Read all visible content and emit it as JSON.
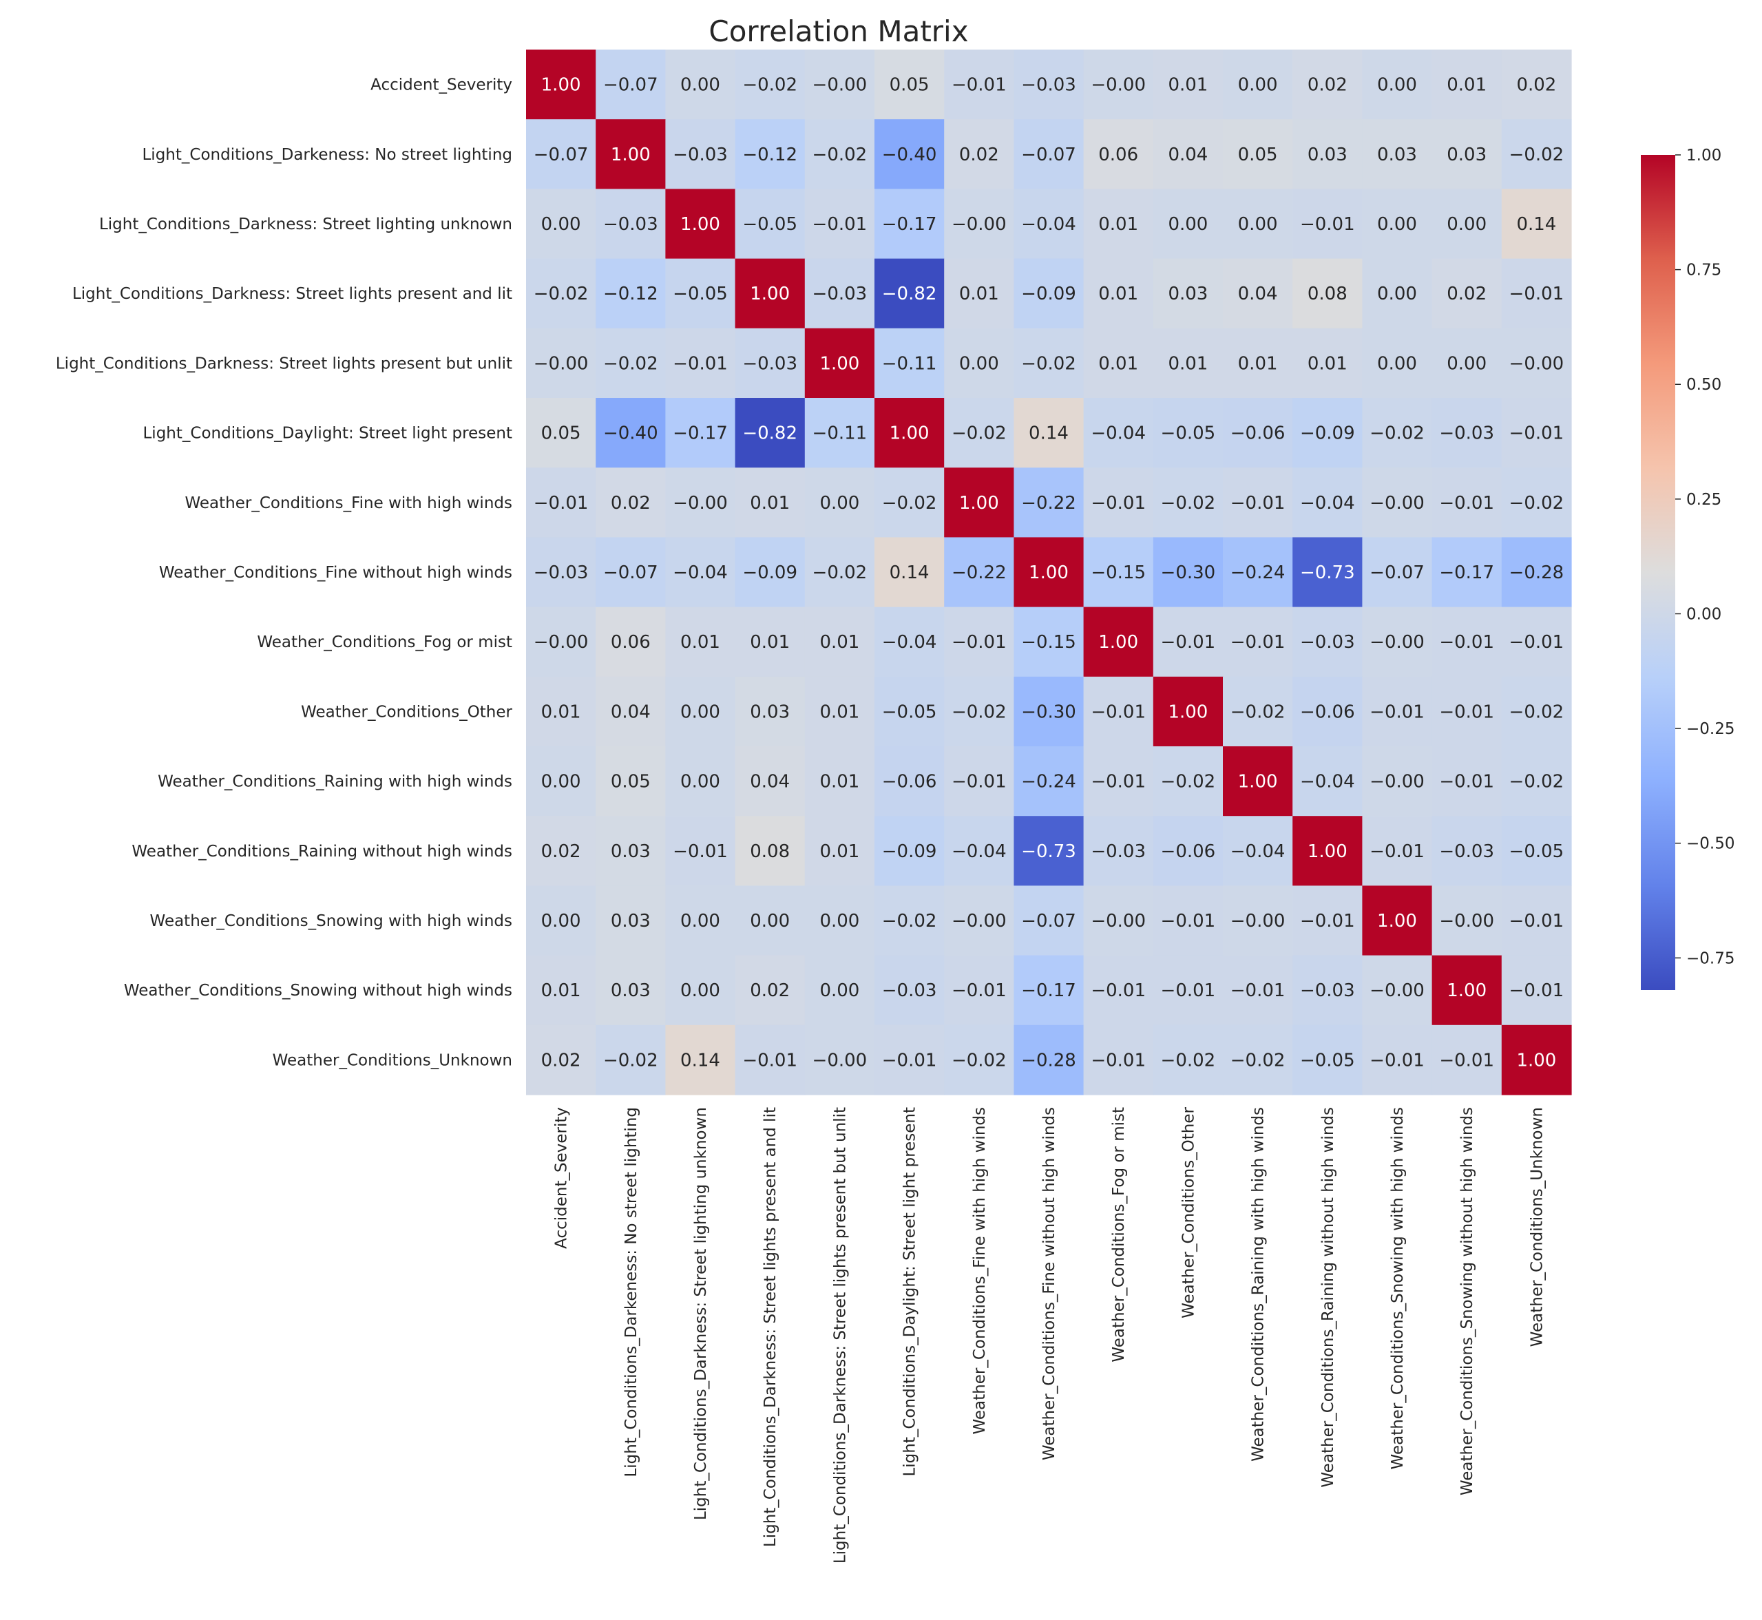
{
  "chart_data": {
    "type": "heatmap",
    "title": "Correlation Matrix",
    "colormap": "coolwarm",
    "vmin": -0.82,
    "vmax": 1.0,
    "labels": [
      "Accident_Severity",
      "Light_Conditions_Darkeness: No street lighting",
      "Light_Conditions_Darkness: Street lighting unknown",
      "Light_Conditions_Darkness: Street lights present and lit",
      "Light_Conditions_Darkness: Street lights present but unlit",
      "Light_Conditions_Daylight: Street light present",
      "Weather_Conditions_Fine with high winds",
      "Weather_Conditions_Fine without high winds",
      "Weather_Conditions_Fog or mist",
      "Weather_Conditions_Other",
      "Weather_Conditions_Raining with high winds",
      "Weather_Conditions_Raining without high winds",
      "Weather_Conditions_Snowing with high winds",
      "Weather_Conditions_Snowing without high winds",
      "Weather_Conditions_Unknown"
    ],
    "values": [
      [
        1.0,
        -0.07,
        0.0,
        -0.02,
        -0.0,
        0.05,
        -0.01,
        -0.03,
        -0.0,
        0.01,
        0.0,
        0.02,
        0.0,
        0.01,
        0.02
      ],
      [
        -0.07,
        1.0,
        -0.03,
        -0.12,
        -0.02,
        -0.4,
        0.02,
        -0.07,
        0.06,
        0.04,
        0.05,
        0.03,
        0.03,
        0.03,
        -0.02
      ],
      [
        0.0,
        -0.03,
        1.0,
        -0.05,
        -0.01,
        -0.17,
        -0.0,
        -0.04,
        0.01,
        0.0,
        0.0,
        -0.01,
        0.0,
        0.0,
        0.14
      ],
      [
        -0.02,
        -0.12,
        -0.05,
        1.0,
        -0.03,
        -0.82,
        0.01,
        -0.09,
        0.01,
        0.03,
        0.04,
        0.08,
        0.0,
        0.02,
        -0.01
      ],
      [
        -0.0,
        -0.02,
        -0.01,
        -0.03,
        1.0,
        -0.11,
        0.0,
        -0.02,
        0.01,
        0.01,
        0.01,
        0.01,
        0.0,
        0.0,
        -0.0
      ],
      [
        0.05,
        -0.4,
        -0.17,
        -0.82,
        -0.11,
        1.0,
        -0.02,
        0.14,
        -0.04,
        -0.05,
        -0.06,
        -0.09,
        -0.02,
        -0.03,
        -0.01
      ],
      [
        -0.01,
        0.02,
        -0.0,
        0.01,
        0.0,
        -0.02,
        1.0,
        -0.22,
        -0.01,
        -0.02,
        -0.01,
        -0.04,
        -0.0,
        -0.01,
        -0.02
      ],
      [
        -0.03,
        -0.07,
        -0.04,
        -0.09,
        -0.02,
        0.14,
        -0.22,
        1.0,
        -0.15,
        -0.3,
        -0.24,
        -0.73,
        -0.07,
        -0.17,
        -0.28
      ],
      [
        -0.0,
        0.06,
        0.01,
        0.01,
        0.01,
        -0.04,
        -0.01,
        -0.15,
        1.0,
        -0.01,
        -0.01,
        -0.03,
        -0.0,
        -0.01,
        -0.01
      ],
      [
        0.01,
        0.04,
        0.0,
        0.03,
        0.01,
        -0.05,
        -0.02,
        -0.3,
        -0.01,
        1.0,
        -0.02,
        -0.06,
        -0.01,
        -0.01,
        -0.02
      ],
      [
        0.0,
        0.05,
        0.0,
        0.04,
        0.01,
        -0.06,
        -0.01,
        -0.24,
        -0.01,
        -0.02,
        1.0,
        -0.04,
        -0.0,
        -0.01,
        -0.02
      ],
      [
        0.02,
        0.03,
        -0.01,
        0.08,
        0.01,
        -0.09,
        -0.04,
        -0.73,
        -0.03,
        -0.06,
        -0.04,
        1.0,
        -0.01,
        -0.03,
        -0.05
      ],
      [
        0.0,
        0.03,
        0.0,
        0.0,
        0.0,
        -0.02,
        -0.0,
        -0.07,
        -0.0,
        -0.01,
        -0.0,
        -0.01,
        1.0,
        -0.0,
        -0.01
      ],
      [
        0.01,
        0.03,
        0.0,
        0.02,
        0.0,
        -0.03,
        -0.01,
        -0.17,
        -0.01,
        -0.01,
        -0.01,
        -0.03,
        -0.0,
        1.0,
        -0.01
      ],
      [
        0.02,
        -0.02,
        0.14,
        -0.01,
        -0.0,
        -0.01,
        -0.02,
        -0.28,
        -0.01,
        -0.02,
        -0.02,
        -0.05,
        -0.01,
        -0.01,
        1.0
      ]
    ],
    "colorbar_ticks": [
      1.0,
      0.75,
      0.5,
      0.25,
      0.0,
      -0.25,
      -0.5,
      -0.75
    ],
    "colorbar_tick_labels": [
      "1.00",
      "0.75",
      "0.50",
      "0.25",
      "0.00",
      "−0.25",
      "−0.50",
      "−0.75"
    ],
    "annotation_format": "2 decimals, unicode minus",
    "grid": false,
    "legend": "colorbar right"
  }
}
